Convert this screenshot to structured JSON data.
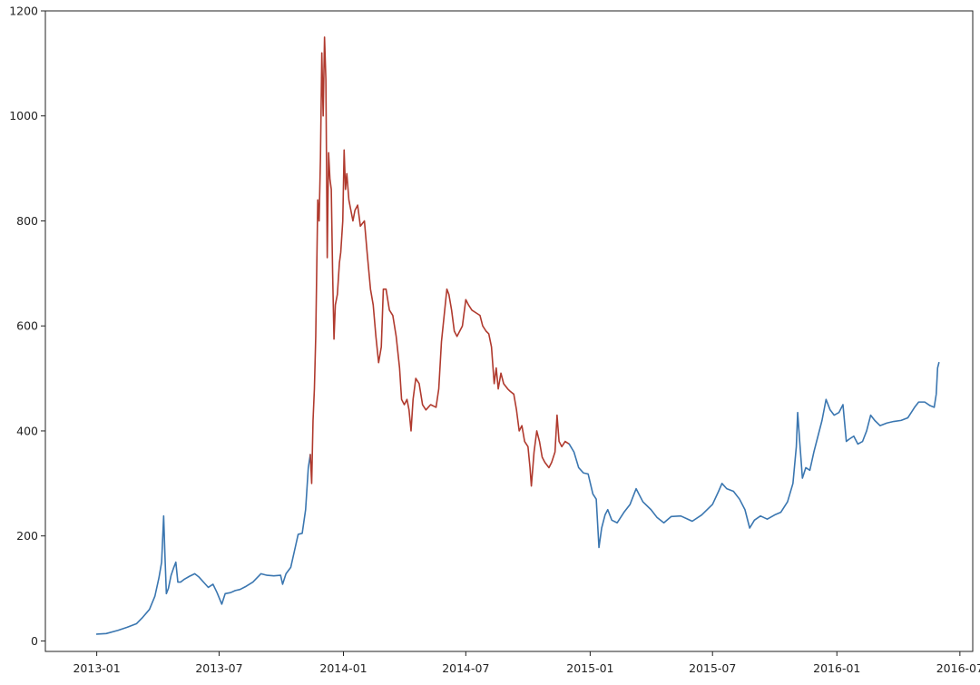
{
  "chart_data": {
    "type": "line",
    "title": "",
    "xlabel": "",
    "ylabel": "",
    "x_ticks": [
      "2013-01",
      "2013-07",
      "2014-01",
      "2014-07",
      "2015-01",
      "2015-07",
      "2016-01",
      "2016-07"
    ],
    "y_ticks": [
      0,
      200,
      400,
      600,
      800,
      1000,
      1200
    ],
    "xlim": [
      "2012-10-17",
      "2016-07-20"
    ],
    "ylim": [
      -20,
      1200
    ],
    "grid": false,
    "series": [
      {
        "color": "#3a76b0",
        "points": [
          [
            "2013-01-01",
            13
          ],
          [
            "2013-01-15",
            14
          ],
          [
            "2013-02-01",
            20
          ],
          [
            "2013-02-15",
            26
          ],
          [
            "2013-03-01",
            33
          ],
          [
            "2013-03-10",
            45
          ],
          [
            "2013-03-20",
            60
          ],
          [
            "2013-03-28",
            85
          ],
          [
            "2013-04-03",
            120
          ],
          [
            "2013-04-07",
            150
          ],
          [
            "2013-04-10",
            238
          ],
          [
            "2013-04-12",
            160
          ],
          [
            "2013-04-14",
            90
          ],
          [
            "2013-04-17",
            100
          ],
          [
            "2013-04-21",
            125
          ],
          [
            "2013-04-25",
            140
          ],
          [
            "2013-04-28",
            150
          ],
          [
            "2013-05-01",
            112
          ],
          [
            "2013-05-05",
            112
          ],
          [
            "2013-05-10",
            117
          ],
          [
            "2013-05-18",
            123
          ],
          [
            "2013-05-26",
            128
          ],
          [
            "2013-06-01",
            122
          ],
          [
            "2013-06-08",
            112
          ],
          [
            "2013-06-15",
            102
          ],
          [
            "2013-06-22",
            108
          ],
          [
            "2013-06-28",
            92
          ],
          [
            "2013-07-05",
            70
          ],
          [
            "2013-07-10",
            90
          ],
          [
            "2013-07-18",
            92
          ],
          [
            "2013-07-25",
            96
          ],
          [
            "2013-08-01",
            98
          ],
          [
            "2013-08-10",
            104
          ],
          [
            "2013-08-20",
            112
          ],
          [
            "2013-08-26",
            120
          ],
          [
            "2013-09-01",
            128
          ],
          [
            "2013-09-10",
            125
          ],
          [
            "2013-09-20",
            124
          ],
          [
            "2013-09-30",
            125
          ],
          [
            "2013-10-03",
            108
          ],
          [
            "2013-10-08",
            128
          ],
          [
            "2013-10-15",
            140
          ],
          [
            "2013-10-22",
            180
          ],
          [
            "2013-10-26",
            203
          ],
          [
            "2013-11-01",
            205
          ],
          [
            "2013-11-06",
            250
          ],
          [
            "2013-11-10",
            330
          ],
          [
            "2013-11-13",
            355
          ]
        ]
      },
      {
        "color": "#b03a2e",
        "points": [
          [
            "2013-11-13",
            355
          ],
          [
            "2013-11-15",
            300
          ],
          [
            "2013-11-17",
            420
          ],
          [
            "2013-11-19",
            480
          ],
          [
            "2013-11-21",
            580
          ],
          [
            "2013-11-24",
            840
          ],
          [
            "2013-11-26",
            800
          ],
          [
            "2013-11-28",
            920
          ],
          [
            "2013-11-30",
            1120
          ],
          [
            "2013-12-02",
            1000
          ],
          [
            "2013-12-04",
            1150
          ],
          [
            "2013-12-06",
            1070
          ],
          [
            "2013-12-08",
            730
          ],
          [
            "2013-12-10",
            930
          ],
          [
            "2013-12-12",
            880
          ],
          [
            "2013-12-14",
            860
          ],
          [
            "2013-12-16",
            700
          ],
          [
            "2013-12-18",
            575
          ],
          [
            "2013-12-20",
            640
          ],
          [
            "2013-12-23",
            660
          ],
          [
            "2013-12-26",
            720
          ],
          [
            "2013-12-28",
            740
          ],
          [
            "2013-12-31",
            800
          ],
          [
            "2014-01-02",
            935
          ],
          [
            "2014-01-04",
            860
          ],
          [
            "2014-01-06",
            890
          ],
          [
            "2014-01-09",
            840
          ],
          [
            "2014-01-12",
            820
          ],
          [
            "2014-01-15",
            800
          ],
          [
            "2014-01-18",
            820
          ],
          [
            "2014-01-22",
            830
          ],
          [
            "2014-01-26",
            790
          ],
          [
            "2014-02-01",
            800
          ],
          [
            "2014-02-05",
            740
          ],
          [
            "2014-02-10",
            670
          ],
          [
            "2014-02-14",
            640
          ],
          [
            "2014-02-18",
            580
          ],
          [
            "2014-02-22",
            530
          ],
          [
            "2014-02-26",
            560
          ],
          [
            "2014-03-01",
            670
          ],
          [
            "2014-03-05",
            670
          ],
          [
            "2014-03-10",
            630
          ],
          [
            "2014-03-15",
            620
          ],
          [
            "2014-03-20",
            580
          ],
          [
            "2014-03-25",
            520
          ],
          [
            "2014-03-28",
            460
          ],
          [
            "2014-04-01",
            450
          ],
          [
            "2014-04-05",
            460
          ],
          [
            "2014-04-08",
            440
          ],
          [
            "2014-04-11",
            400
          ],
          [
            "2014-04-14",
            460
          ],
          [
            "2014-04-18",
            500
          ],
          [
            "2014-04-23",
            490
          ],
          [
            "2014-04-28",
            450
          ],
          [
            "2014-05-03",
            440
          ],
          [
            "2014-05-10",
            450
          ],
          [
            "2014-05-18",
            445
          ],
          [
            "2014-05-22",
            480
          ],
          [
            "2014-05-26",
            570
          ],
          [
            "2014-05-30",
            620
          ],
          [
            "2014-06-03",
            670
          ],
          [
            "2014-06-06",
            660
          ],
          [
            "2014-06-10",
            630
          ],
          [
            "2014-06-14",
            590
          ],
          [
            "2014-06-18",
            580
          ],
          [
            "2014-06-22",
            590
          ],
          [
            "2014-06-26",
            600
          ],
          [
            "2014-07-01",
            650
          ],
          [
            "2014-07-05",
            640
          ],
          [
            "2014-07-10",
            630
          ],
          [
            "2014-07-16",
            625
          ],
          [
            "2014-07-22",
            620
          ],
          [
            "2014-07-26",
            600
          ],
          [
            "2014-07-31",
            590
          ],
          [
            "2014-08-04",
            585
          ],
          [
            "2014-08-08",
            560
          ],
          [
            "2014-08-12",
            490
          ],
          [
            "2014-08-15",
            520
          ],
          [
            "2014-08-18",
            480
          ],
          [
            "2014-08-22",
            510
          ],
          [
            "2014-08-26",
            490
          ],
          [
            "2014-09-01",
            480
          ],
          [
            "2014-09-05",
            475
          ],
          [
            "2014-09-10",
            470
          ],
          [
            "2014-09-14",
            440
          ],
          [
            "2014-09-18",
            400
          ],
          [
            "2014-09-22",
            410
          ],
          [
            "2014-09-26",
            380
          ],
          [
            "2014-10-01",
            370
          ],
          [
            "2014-10-04",
            330
          ],
          [
            "2014-10-06",
            295
          ],
          [
            "2014-10-10",
            360
          ],
          [
            "2014-10-14",
            400
          ],
          [
            "2014-10-18",
            380
          ],
          [
            "2014-10-22",
            350
          ],
          [
            "2014-10-26",
            340
          ],
          [
            "2014-11-01",
            330
          ],
          [
            "2014-11-05",
            340
          ],
          [
            "2014-11-10",
            360
          ],
          [
            "2014-11-13",
            430
          ],
          [
            "2014-11-16",
            380
          ],
          [
            "2014-11-20",
            370
          ],
          [
            "2014-11-25",
            380
          ],
          [
            "2014-12-01",
            375
          ]
        ]
      },
      {
        "color": "#3a76b0",
        "points": [
          [
            "2014-12-01",
            375
          ],
          [
            "2014-12-08",
            360
          ],
          [
            "2014-12-15",
            330
          ],
          [
            "2014-12-22",
            320
          ],
          [
            "2014-12-29",
            318
          ],
          [
            "2015-01-05",
            280
          ],
          [
            "2015-01-10",
            270
          ],
          [
            "2015-01-14",
            178
          ],
          [
            "2015-01-18",
            215
          ],
          [
            "2015-01-23",
            240
          ],
          [
            "2015-01-27",
            250
          ],
          [
            "2015-02-02",
            230
          ],
          [
            "2015-02-10",
            225
          ],
          [
            "2015-02-20",
            245
          ],
          [
            "2015-03-01",
            260
          ],
          [
            "2015-03-10",
            290
          ],
          [
            "2015-03-20",
            265
          ],
          [
            "2015-04-01",
            250
          ],
          [
            "2015-04-10",
            235
          ],
          [
            "2015-04-20",
            225
          ],
          [
            "2015-05-01",
            237
          ],
          [
            "2015-05-15",
            238
          ],
          [
            "2015-06-01",
            228
          ],
          [
            "2015-06-15",
            240
          ],
          [
            "2015-07-01",
            260
          ],
          [
            "2015-07-10",
            285
          ],
          [
            "2015-07-15",
            300
          ],
          [
            "2015-07-22",
            290
          ],
          [
            "2015-08-01",
            285
          ],
          [
            "2015-08-10",
            270
          ],
          [
            "2015-08-18",
            250
          ],
          [
            "2015-08-25",
            215
          ],
          [
            "2015-09-01",
            230
          ],
          [
            "2015-09-10",
            238
          ],
          [
            "2015-09-20",
            232
          ],
          [
            "2015-10-01",
            240
          ],
          [
            "2015-10-10",
            245
          ],
          [
            "2015-10-20",
            265
          ],
          [
            "2015-10-28",
            300
          ],
          [
            "2015-11-02",
            370
          ],
          [
            "2015-11-04",
            435
          ],
          [
            "2015-11-07",
            380
          ],
          [
            "2015-11-11",
            310
          ],
          [
            "2015-11-16",
            330
          ],
          [
            "2015-11-22",
            325
          ],
          [
            "2015-11-28",
            360
          ],
          [
            "2015-12-04",
            390
          ],
          [
            "2015-12-10",
            420
          ],
          [
            "2015-12-16",
            460
          ],
          [
            "2015-12-22",
            440
          ],
          [
            "2015-12-28",
            430
          ],
          [
            "2016-01-04",
            435
          ],
          [
            "2016-01-10",
            450
          ],
          [
            "2016-01-15",
            380
          ],
          [
            "2016-01-20",
            385
          ],
          [
            "2016-01-26",
            390
          ],
          [
            "2016-02-01",
            375
          ],
          [
            "2016-02-08",
            380
          ],
          [
            "2016-02-14",
            400
          ],
          [
            "2016-02-20",
            430
          ],
          [
            "2016-02-26",
            420
          ],
          [
            "2016-03-05",
            410
          ],
          [
            "2016-03-15",
            415
          ],
          [
            "2016-03-25",
            418
          ],
          [
            "2016-04-05",
            420
          ],
          [
            "2016-04-15",
            425
          ],
          [
            "2016-04-25",
            445
          ],
          [
            "2016-05-01",
            455
          ],
          [
            "2016-05-10",
            455
          ],
          [
            "2016-05-18",
            448
          ],
          [
            "2016-05-24",
            445
          ],
          [
            "2016-05-27",
            470
          ],
          [
            "2016-05-29",
            520
          ],
          [
            "2016-05-31",
            530
          ]
        ]
      }
    ]
  }
}
